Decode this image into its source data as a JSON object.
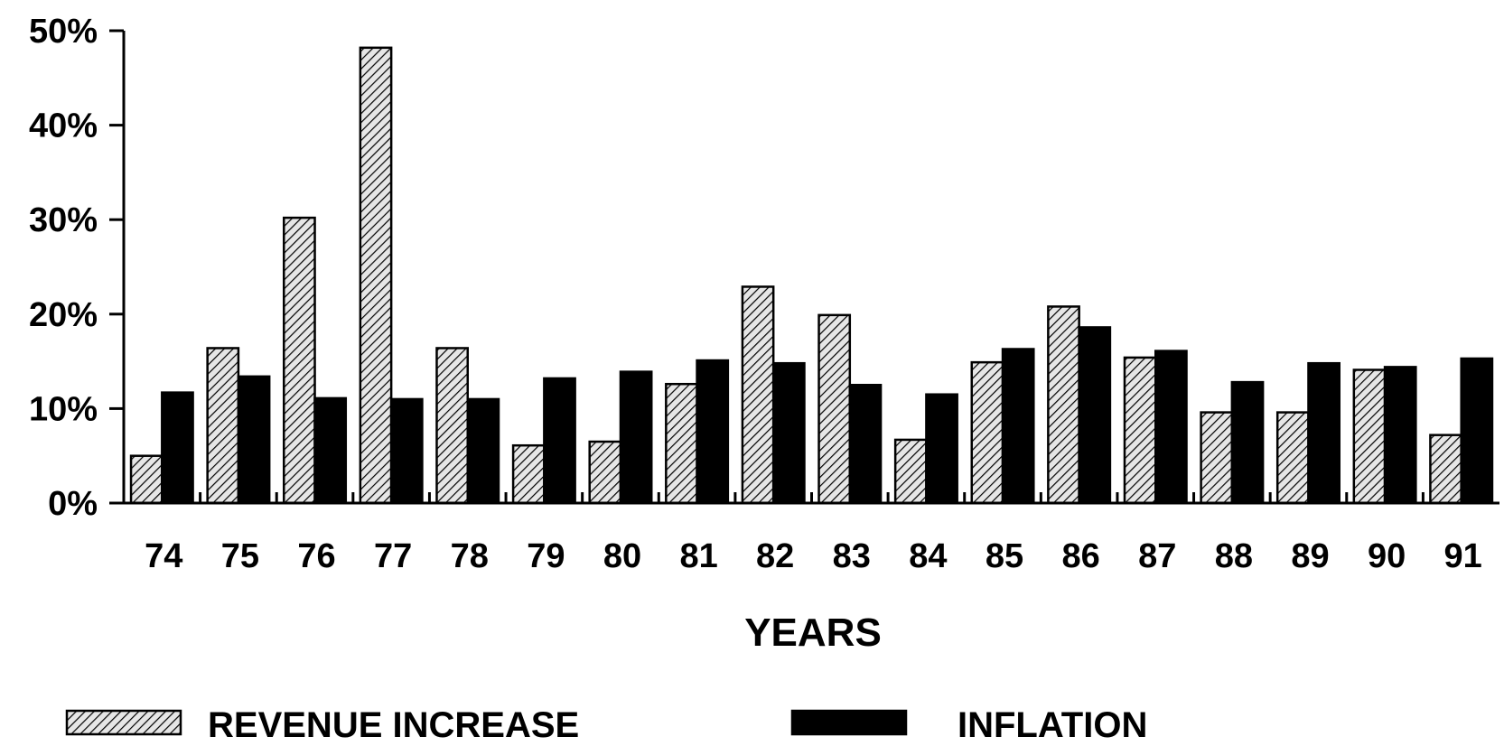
{
  "chart_data": {
    "type": "bar",
    "title": "",
    "xlabel": "YEARS",
    "ylabel": "",
    "categories": [
      "74",
      "75",
      "76",
      "77",
      "78",
      "79",
      "80",
      "81",
      "82",
      "83",
      "84",
      "85",
      "86",
      "87",
      "88",
      "89",
      "90",
      "91"
    ],
    "series": [
      {
        "name": "REVENUE INCREASE",
        "pattern": "hatched",
        "values": [
          5,
          16.4,
          30.2,
          48.2,
          16.4,
          6.1,
          6.5,
          12.6,
          22.9,
          19.9,
          6.7,
          14.9,
          20.8,
          15.4,
          9.6,
          9.6,
          14.1,
          7.2
        ]
      },
      {
        "name": "INFLATION",
        "pattern": "solid",
        "color": "#000000",
        "values": [
          11.7,
          13.4,
          11.1,
          11.0,
          11.0,
          13.2,
          13.9,
          15.1,
          14.8,
          12.5,
          11.5,
          16.3,
          18.6,
          16.1,
          12.8,
          14.8,
          14.4,
          15.3
        ]
      }
    ],
    "yticks": [
      "0%",
      "10%",
      "20%",
      "30%",
      "40%",
      "50%"
    ],
    "ylim": [
      0,
      50
    ],
    "grid": false,
    "legend_position": "bottom"
  }
}
